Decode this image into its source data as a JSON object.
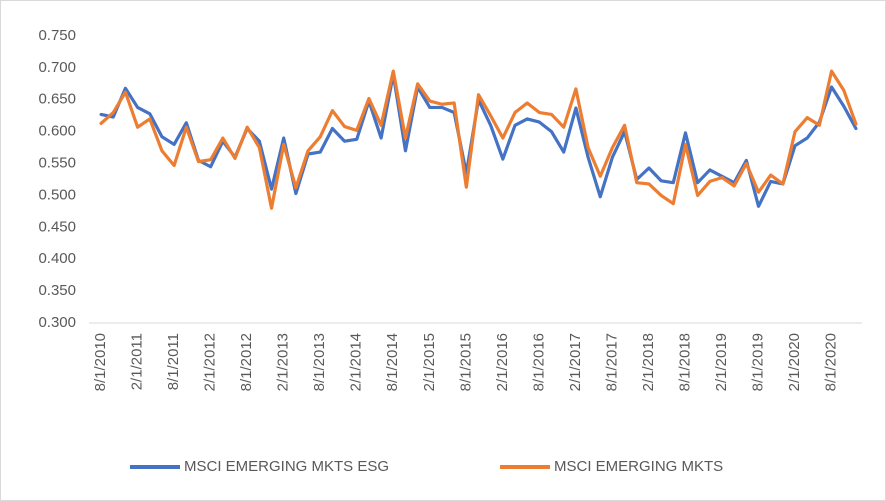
{
  "chart_data": {
    "type": "line",
    "categories": [
      "8/1/2010",
      null,
      null,
      "2/1/2011",
      null,
      null,
      "8/1/2011",
      null,
      null,
      "2/1/2012",
      null,
      null,
      "8/1/2012",
      null,
      null,
      "2/1/2013",
      null,
      null,
      "8/1/2013",
      null,
      null,
      "2/1/2014",
      null,
      null,
      "8/1/2014",
      null,
      null,
      "2/1/2015",
      null,
      null,
      "8/1/2015",
      null,
      null,
      "2/1/2016",
      null,
      null,
      "8/1/2016",
      null,
      null,
      "2/1/2017",
      null,
      null,
      "8/1/2017",
      null,
      null,
      "2/1/2018",
      null,
      null,
      "8/1/2018",
      null,
      null,
      "2/1/2019",
      null,
      null,
      "8/1/2019",
      null,
      null,
      "2/1/2020",
      null,
      null,
      "8/1/2020",
      null,
      null
    ],
    "series": [
      {
        "name": "MSCI EMERGING MKTS ESG",
        "color": "#4472c4",
        "values": [
          0.627,
          0.623,
          0.668,
          0.638,
          0.628,
          0.592,
          0.58,
          0.614,
          0.555,
          0.545,
          0.585,
          0.56,
          0.605,
          0.585,
          0.51,
          0.59,
          0.503,
          0.565,
          0.568,
          0.605,
          0.585,
          0.588,
          0.648,
          0.59,
          0.69,
          0.57,
          0.67,
          0.638,
          0.638,
          0.63,
          0.535,
          0.65,
          0.61,
          0.557,
          0.61,
          0.62,
          0.615,
          0.6,
          0.568,
          0.637,
          0.56,
          0.498,
          0.56,
          0.6,
          0.525,
          0.543,
          0.523,
          0.52,
          0.598,
          0.52,
          0.54,
          0.53,
          0.52,
          0.555,
          0.483,
          0.522,
          0.518,
          0.578,
          0.59,
          0.615,
          0.67,
          0.64,
          0.605
        ]
      },
      {
        "name": "MSCI EMERGING MKTS",
        "color": "#ed7d31",
        "values": [
          0.613,
          0.63,
          0.662,
          0.607,
          0.62,
          0.57,
          0.547,
          0.607,
          0.553,
          0.556,
          0.59,
          0.558,
          0.607,
          0.575,
          0.48,
          0.58,
          0.512,
          0.57,
          0.592,
          0.633,
          0.608,
          0.602,
          0.652,
          0.61,
          0.695,
          0.59,
          0.675,
          0.648,
          0.643,
          0.645,
          0.513,
          0.658,
          0.625,
          0.59,
          0.63,
          0.645,
          0.63,
          0.627,
          0.607,
          0.667,
          0.575,
          0.53,
          0.575,
          0.61,
          0.52,
          0.518,
          0.5,
          0.487,
          0.58,
          0.5,
          0.522,
          0.528,
          0.515,
          0.55,
          0.505,
          0.532,
          0.518,
          0.6,
          0.622,
          0.61,
          0.695,
          0.665,
          0.612
        ]
      }
    ],
    "ylim": [
      0.3,
      0.75
    ],
    "yticks": [
      {
        "value": 0.3,
        "label": "0.300"
      },
      {
        "value": 0.35,
        "label": "0.350"
      },
      {
        "value": 0.4,
        "label": "0.400"
      },
      {
        "value": 0.45,
        "label": "0.450"
      },
      {
        "value": 0.5,
        "label": "0.500"
      },
      {
        "value": 0.55,
        "label": "0.550"
      },
      {
        "value": 0.6,
        "label": "0.600"
      },
      {
        "value": 0.65,
        "label": "0.650"
      },
      {
        "value": 0.7,
        "label": "0.700"
      },
      {
        "value": 0.75,
        "label": "0.750"
      }
    ],
    "grid": false,
    "legend": "bottom"
  }
}
